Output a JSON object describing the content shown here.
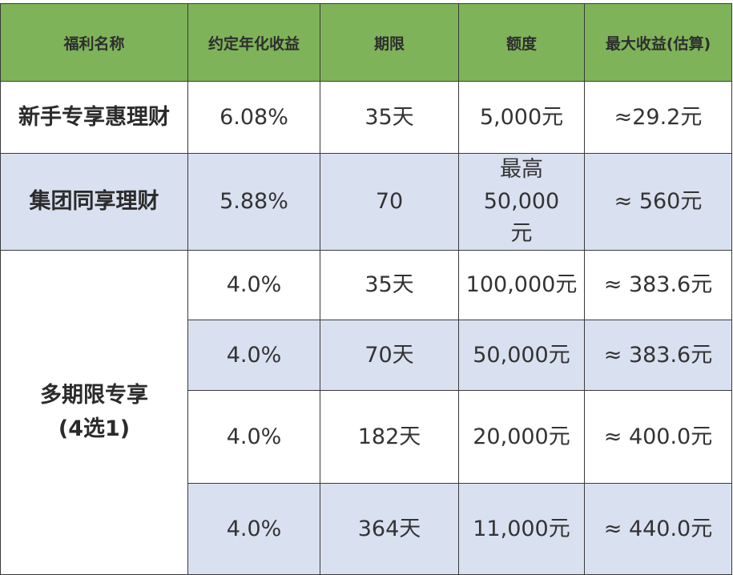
{
  "headers": [
    "福利名称",
    "约定年化收益",
    "期限",
    "额度",
    "最大收益(估算)"
  ],
  "rows": [
    {
      "name": "新手专享惠理财",
      "rate": "6.08%",
      "term": "35天",
      "amount": "5,000元",
      "max": "≈29.2元"
    },
    {
      "name": "集团同享理财",
      "rate": "5.88%",
      "term": "70",
      "amount_line1": "最高50,000",
      "amount_line2": "元",
      "max": "≈ 560元"
    }
  ],
  "group": {
    "name_line1": "多期限专享",
    "name_line2": "(4选1)",
    "rows": [
      {
        "rate": "4.0%",
        "term": "35天",
        "amount": "100,000元",
        "max": "≈ 383.6元"
      },
      {
        "rate": "4.0%",
        "term": "70天",
        "amount": "50,000元",
        "max": "≈ 383.6元"
      },
      {
        "rate": "4.0%",
        "term": "182天",
        "amount": "20,000元",
        "max": "≈ 400.0元"
      },
      {
        "rate": "4.0%",
        "term": "364天",
        "amount": "11,000元",
        "max": "≈ 440.0元"
      }
    ]
  },
  "colors": {
    "header": "#7fb35a",
    "alt_row": "#d9e0f0"
  }
}
